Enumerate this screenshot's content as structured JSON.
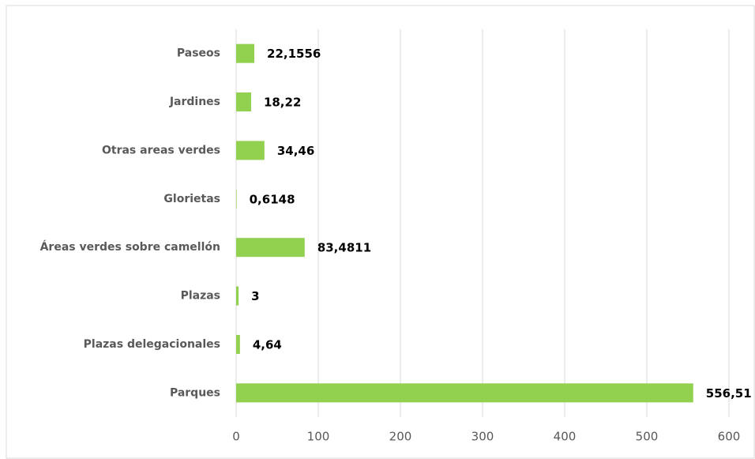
{
  "chart_data": {
    "type": "bar",
    "orientation": "horizontal",
    "categories": [
      "Paseos",
      "Jardines",
      "Otras areas verdes",
      "Glorietas",
      "Áreas verdes sobre camellón",
      "Plazas",
      "Plazas delegacionales",
      "Parques"
    ],
    "values": [
      22.1556,
      18.22,
      34.46,
      0.6148,
      83.4811,
      3,
      4.64,
      556.51
    ],
    "value_labels": [
      "22,1556",
      "18,22",
      "34,46",
      "0,6148",
      "83,4811",
      "3",
      "4,64",
      "556,51"
    ],
    "color": "#92d050",
    "xlim": [
      0,
      600
    ],
    "xticks": [
      0,
      100,
      200,
      300,
      400,
      500,
      600
    ],
    "grid": true
  }
}
